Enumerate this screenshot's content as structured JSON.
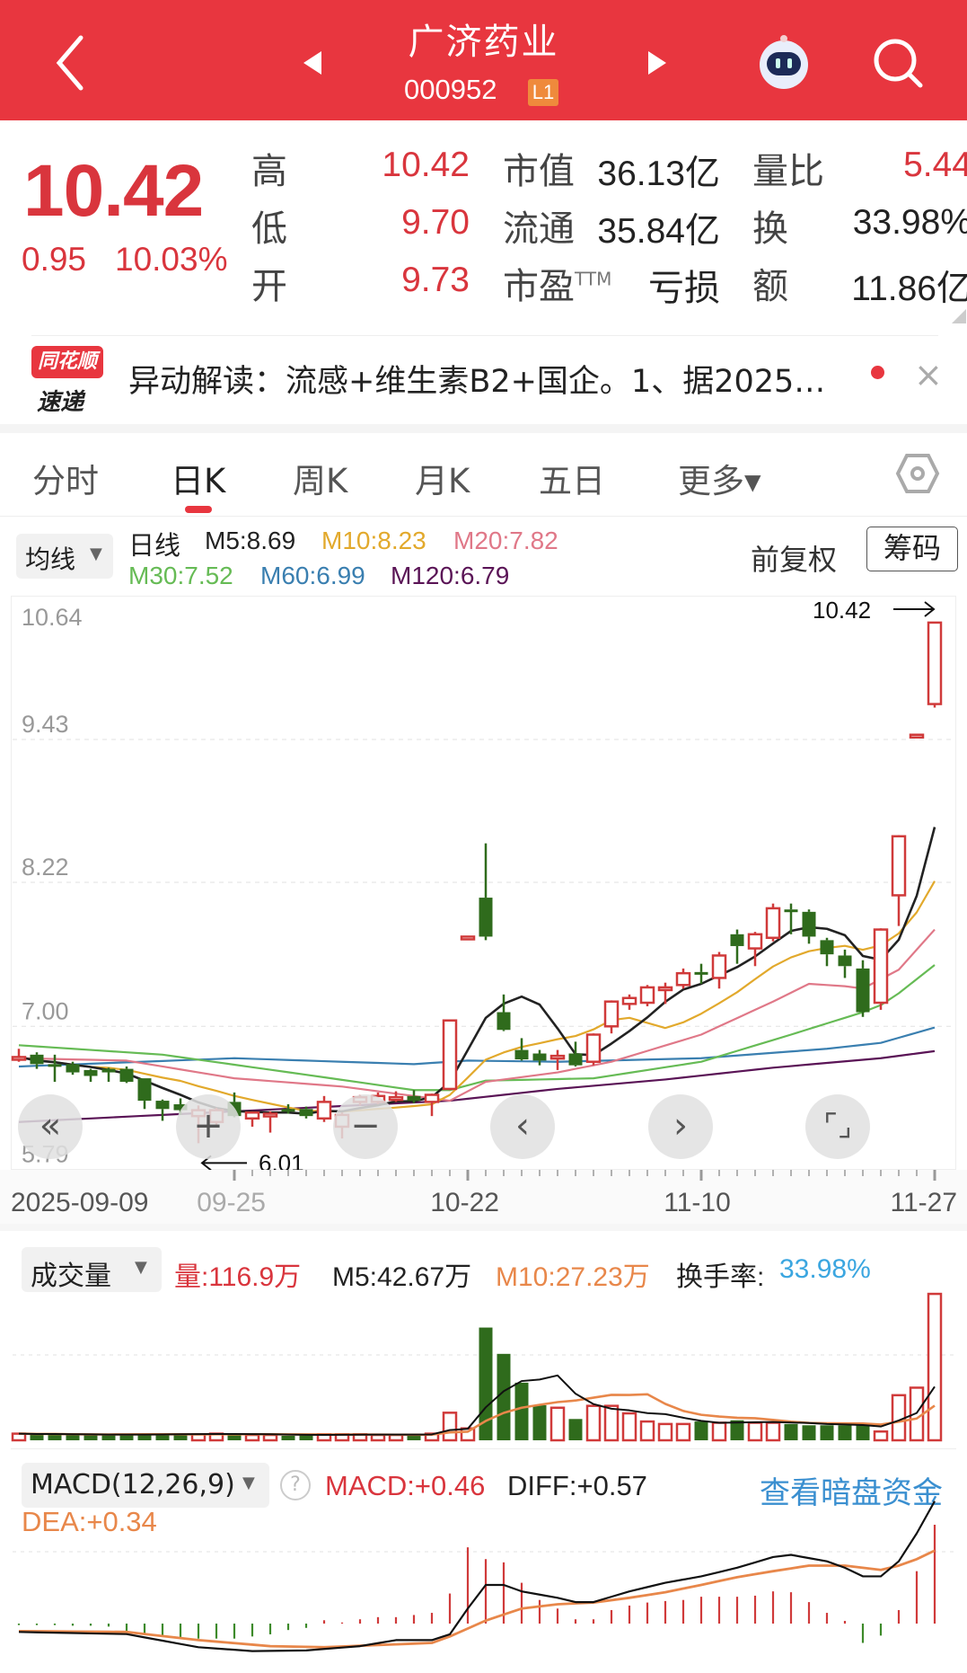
{
  "header": {
    "title": "广济药业",
    "code": "000952",
    "level_badge": "L1"
  },
  "quote": {
    "price": "10.42",
    "change": "0.95",
    "change_pct": "10.03%",
    "high_label": "高",
    "high": "10.42",
    "low_label": "低",
    "low": "9.70",
    "open_label": "开",
    "open": "9.73",
    "mcap_label": "市值",
    "mcap": "36.13亿",
    "float_label": "流通",
    "float": "35.84亿",
    "pe_label": "市盈",
    "pe_sup": "TTM",
    "pe": "亏损",
    "vol_ratio_label": "量比",
    "vol_ratio": "5.44",
    "turnover_label": "换",
    "turnover": "33.98%",
    "amount_label": "额",
    "amount": "11.86亿"
  },
  "news": {
    "logo_top": "同花顺",
    "logo_bottom": "速递",
    "text": "异动解读：流感+维生素B2+国企。1、据2025…"
  },
  "tabs": [
    {
      "label": "分时"
    },
    {
      "label": "日K"
    },
    {
      "label": "周K"
    },
    {
      "label": "月K"
    },
    {
      "label": "五日"
    },
    {
      "label": "更多▾"
    }
  ],
  "active_tab": "日K",
  "ma_legend": {
    "selector": "均线",
    "period": "日线",
    "items": [
      {
        "label": "M5:8.69",
        "color": "#222222"
      },
      {
        "label": "M10:8.23",
        "color": "#e2a92c"
      },
      {
        "label": "M20:7.82",
        "color": "#e07888"
      },
      {
        "label": "M30:7.52",
        "color": "#66bb55"
      },
      {
        "label": "M60:6.99",
        "color": "#3a7fb0"
      },
      {
        "label": "M120:6.79",
        "color": "#5a1456"
      }
    ],
    "adjust": "前复权",
    "chips": "筹码"
  },
  "volume_legend": {
    "selector": "成交量",
    "vol": "量:116.9万",
    "m5": "M5:42.67万",
    "m10": "M10:27.23万",
    "turnover_label": "换手率:",
    "turnover": "33.98%"
  },
  "macd_legend": {
    "selector": "MACD(12,26,9)",
    "macd": "MACD:+0.46",
    "diff": "DIFF:+0.57",
    "dea": "DEA:+0.34",
    "link": "查看暗盘资金"
  },
  "colors": {
    "brand_red": "#e8363f",
    "up": "#d03a3a",
    "down": "#2f6b1c",
    "link_blue": "#3a8fd0"
  },
  "chart_data": [
    {
      "type": "candlestick",
      "y_ticks": [
        10.64,
        9.43,
        8.22,
        7.0,
        5.79
      ],
      "ylim": [
        5.79,
        10.64
      ],
      "x_ticks": [
        {
          "label": "2025-09-09",
          "index": 0
        },
        {
          "label": "09-25",
          "index": 12
        },
        {
          "label": "10-22",
          "index": 25
        },
        {
          "label": "11-10",
          "index": 38
        },
        {
          "label": "11-27",
          "index": 51
        }
      ],
      "ohlc_order": [
        "open",
        "high",
        "low",
        "close"
      ],
      "candles": [
        [
          6.74,
          6.81,
          6.7,
          6.74
        ],
        [
          6.76,
          6.78,
          6.64,
          6.68
        ],
        [
          6.68,
          6.76,
          6.53,
          6.67
        ],
        [
          6.68,
          6.7,
          6.59,
          6.61
        ],
        [
          6.63,
          6.64,
          6.53,
          6.58
        ],
        [
          6.64,
          6.65,
          6.53,
          6.61
        ],
        [
          6.64,
          6.66,
          6.52,
          6.53
        ],
        [
          6.56,
          6.56,
          6.3,
          6.37
        ],
        [
          6.37,
          6.38,
          6.2,
          6.3
        ],
        [
          6.34,
          6.39,
          6.25,
          6.29
        ],
        [
          6.24,
          6.33,
          6.01,
          6.29
        ],
        [
          6.19,
          6.31,
          6.15,
          6.29
        ],
        [
          6.36,
          6.44,
          6.23,
          6.24
        ],
        [
          6.22,
          6.28,
          6.15,
          6.27
        ],
        [
          6.24,
          6.28,
          6.1,
          6.26
        ],
        [
          6.3,
          6.34,
          6.26,
          6.29
        ],
        [
          6.3,
          6.32,
          6.22,
          6.24
        ],
        [
          6.22,
          6.41,
          6.19,
          6.36
        ],
        [
          6.15,
          6.27,
          6.05,
          6.25
        ],
        [
          6.36,
          6.42,
          6.33,
          6.4
        ],
        [
          6.36,
          6.44,
          6.34,
          6.41
        ],
        [
          6.39,
          6.45,
          6.36,
          6.4
        ],
        [
          6.41,
          6.46,
          6.35,
          6.37
        ],
        [
          6.36,
          6.43,
          6.24,
          6.42
        ],
        [
          6.47,
          7.05,
          6.46,
          7.05
        ],
        [
          7.76,
          7.76,
          7.76,
          7.76
        ],
        [
          8.09,
          8.55,
          7.73,
          7.76
        ],
        [
          7.12,
          7.27,
          6.96,
          6.97
        ],
        [
          6.8,
          6.9,
          6.71,
          6.72
        ],
        [
          6.77,
          6.8,
          6.67,
          6.71
        ],
        [
          6.74,
          6.8,
          6.63,
          6.75
        ],
        [
          6.77,
          6.87,
          6.66,
          6.67
        ],
        [
          6.7,
          6.94,
          6.67,
          6.93
        ],
        [
          7.0,
          7.22,
          6.94,
          7.21
        ],
        [
          7.19,
          7.27,
          7.14,
          7.24
        ],
        [
          7.2,
          7.35,
          7.17,
          7.33
        ],
        [
          7.32,
          7.37,
          7.19,
          7.33
        ],
        [
          7.35,
          7.49,
          7.32,
          7.45
        ],
        [
          7.46,
          7.53,
          7.36,
          7.45
        ],
        [
          7.41,
          7.63,
          7.32,
          7.6
        ],
        [
          7.78,
          7.82,
          7.53,
          7.68
        ],
        [
          7.66,
          7.8,
          7.51,
          7.78
        ],
        [
          7.75,
          8.04,
          7.72,
          8.0
        ],
        [
          7.99,
          8.04,
          7.78,
          7.98
        ],
        [
          7.97,
          7.99,
          7.7,
          7.76
        ],
        [
          7.73,
          7.75,
          7.51,
          7.61
        ],
        [
          7.6,
          7.65,
          7.41,
          7.51
        ],
        [
          7.49,
          7.56,
          7.08,
          7.12
        ],
        [
          7.2,
          7.83,
          7.14,
          7.82
        ],
        [
          8.11,
          8.62,
          7.85,
          8.61
        ],
        [
          9.47,
          9.47,
          9.47,
          9.47
        ],
        [
          9.73,
          10.42,
          9.7,
          10.42
        ]
      ],
      "ma_computed": {
        "M5": 5,
        "M10": 10
      },
      "ma_points": {
        "M20": [
          [
            0,
            6.73
          ],
          [
            6,
            6.71
          ],
          [
            12,
            6.56
          ],
          [
            18,
            6.49
          ],
          [
            22,
            6.41
          ],
          [
            24,
            6.37
          ],
          [
            26,
            6.53
          ],
          [
            30,
            6.61
          ],
          [
            33,
            6.7
          ],
          [
            38,
            6.93
          ],
          [
            42,
            7.21
          ],
          [
            44,
            7.36
          ],
          [
            46,
            7.34
          ],
          [
            47,
            7.32
          ],
          [
            49,
            7.48
          ],
          [
            51,
            7.82
          ]
        ],
        "M30": [
          [
            0,
            6.84
          ],
          [
            8,
            6.76
          ],
          [
            16,
            6.59
          ],
          [
            22,
            6.46
          ],
          [
            24,
            6.46
          ],
          [
            26,
            6.54
          ],
          [
            32,
            6.56
          ],
          [
            38,
            6.7
          ],
          [
            43,
            6.93
          ],
          [
            47,
            7.12
          ],
          [
            48,
            7.18
          ],
          [
            49,
            7.28
          ],
          [
            51,
            7.52
          ]
        ],
        "M60": [
          [
            0,
            6.66
          ],
          [
            12,
            6.73
          ],
          [
            22,
            6.68
          ],
          [
            25,
            6.71
          ],
          [
            30,
            6.7
          ],
          [
            38,
            6.73
          ],
          [
            45,
            6.81
          ],
          [
            48,
            6.86
          ],
          [
            51,
            6.99
          ]
        ],
        "M120": [
          [
            0,
            6.19
          ],
          [
            24,
            6.37
          ],
          [
            30,
            6.47
          ],
          [
            36,
            6.55
          ],
          [
            42,
            6.65
          ],
          [
            48,
            6.73
          ],
          [
            51,
            6.79
          ]
        ]
      },
      "annotations": {
        "high": "10.42",
        "low": "6.01"
      }
    },
    {
      "type": "bar",
      "unit": "万",
      "volumes": [
        5.3,
        4.8,
        5,
        4.3,
        4.3,
        4.3,
        4.8,
        5.3,
        4.8,
        4.8,
        4.8,
        5.3,
        5.3,
        4.3,
        4.3,
        3.6,
        4.3,
        4.8,
        4.8,
        4.8,
        4.3,
        4.3,
        4.8,
        5.3,
        22,
        9.5,
        90,
        69,
        46,
        28,
        26,
        17,
        27.5,
        27.5,
        21.5,
        15,
        13,
        13,
        15,
        14,
        16,
        14,
        14,
        13,
        12,
        12,
        12,
        12,
        7,
        36,
        42,
        116.9
      ],
      "ma": {
        "M5": 5,
        "M10": 10
      },
      "ylim": [
        0,
        120
      ]
    },
    {
      "type": "macd",
      "histogram": [
        -0.007,
        -0.007,
        -0.007,
        -0.01,
        -0.01,
        -0.014,
        -0.035,
        -0.05,
        -0.06,
        -0.07,
        -0.07,
        -0.07,
        -0.07,
        -0.06,
        -0.05,
        -0.03,
        -0.02,
        0.003,
        0.005,
        0.02,
        0.03,
        0.03,
        0.04,
        0.05,
        0.14,
        0.355,
        0.3,
        0.285,
        0.19,
        0.11,
        0.07,
        0.02,
        0.02,
        0.063,
        0.084,
        0.098,
        0.105,
        0.11,
        0.125,
        0.125,
        0.125,
        0.13,
        0.15,
        0.146,
        0.1,
        0.05,
        0.0,
        -0.09,
        -0.056,
        0.063,
        0.244,
        0.46
      ],
      "diff": [
        [
          0,
          -0.039
        ],
        [
          6,
          -0.049
        ],
        [
          10,
          -0.11
        ],
        [
          13,
          -0.128
        ],
        [
          16,
          -0.125
        ],
        [
          19,
          -0.105
        ],
        [
          21,
          -0.077
        ],
        [
          23,
          -0.077
        ],
        [
          24,
          -0.05
        ],
        [
          25,
          0.07
        ],
        [
          26,
          0.18
        ],
        [
          27,
          0.18
        ],
        [
          28,
          0.15
        ],
        [
          30,
          0.12
        ],
        [
          31,
          0.1
        ],
        [
          32,
          0.1
        ],
        [
          34,
          0.15
        ],
        [
          36,
          0.19
        ],
        [
          38,
          0.22
        ],
        [
          40,
          0.26
        ],
        [
          42,
          0.31
        ],
        [
          43,
          0.32
        ],
        [
          45,
          0.29
        ],
        [
          46,
          0.26
        ],
        [
          47,
          0.22
        ],
        [
          48,
          0.22
        ],
        [
          49,
          0.29
        ],
        [
          50,
          0.42
        ],
        [
          51,
          0.57
        ]
      ],
      "dea": [
        [
          0,
          -0.035
        ],
        [
          6,
          -0.039
        ],
        [
          10,
          -0.077
        ],
        [
          14,
          -0.105
        ],
        [
          17,
          -0.11
        ],
        [
          20,
          -0.1
        ],
        [
          23,
          -0.09
        ],
        [
          24,
          -0.06
        ],
        [
          26,
          0.014
        ],
        [
          28,
          0.07
        ],
        [
          30,
          0.09
        ],
        [
          32,
          0.098
        ],
        [
          34,
          0.12
        ],
        [
          36,
          0.146
        ],
        [
          38,
          0.18
        ],
        [
          40,
          0.216
        ],
        [
          42,
          0.244
        ],
        [
          44,
          0.27
        ],
        [
          46,
          0.27
        ],
        [
          48,
          0.25
        ],
        [
          49,
          0.27
        ],
        [
          50,
          0.3
        ],
        [
          51,
          0.34
        ]
      ]
    }
  ]
}
